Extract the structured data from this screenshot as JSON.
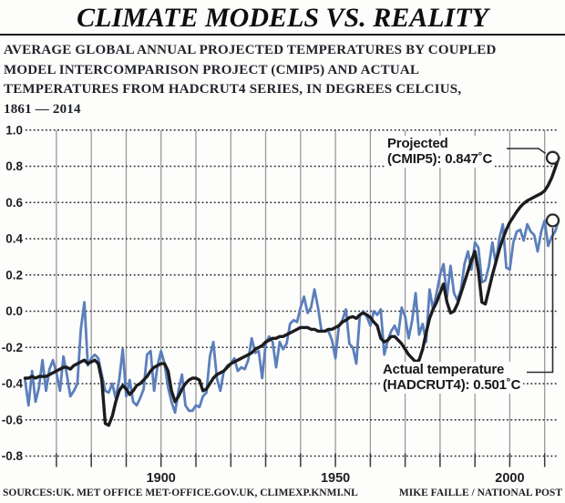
{
  "header": {
    "title": "CLIMATE MODELS VS. REALITY",
    "subtitle_lines": [
      "AVERAGE GLOBAL ANNUAL PROJECTED TEMPERATURES BY COUPLED",
      "MODEL INTERCOMPARISON PROJECT (CMIP5) AND ACTUAL",
      "TEMPERATURES FROM HADCRUT4 SERIES, IN DEGREES CELCIUS,",
      "1861 — 2014"
    ]
  },
  "annotations": {
    "projected": {
      "line1": "Projected",
      "line2": "(CMIP5): 0.847˚C",
      "value": 0.847
    },
    "actual": {
      "line1": "Actual temperature",
      "line2": "(HADCRUT4): 0.501˚C",
      "value": 0.501
    }
  },
  "footer": {
    "sources": "SOURCES:UK. MET OFFICE MET-OFFICE.GOV.UK, CLIMEXP.KNMI.NL",
    "credit": "MIKE FAILLE / NATIONAL POST"
  },
  "colors": {
    "projected_line": "#1c1c1e",
    "actual_line": "#5b7fbc",
    "grid_vertical": "#9a9a9a",
    "grid_dotted": "#2a2a2a",
    "tick": "#3a3a3a",
    "axis_text": "#1f1f22",
    "marker_stroke": "#2b2b2d"
  },
  "chart_data": {
    "type": "line",
    "title": "",
    "xlabel": "",
    "ylabel": "",
    "x_start": 1861,
    "x_end": 2014,
    "x_step": 1,
    "ylim": [
      -0.8,
      1.0
    ],
    "grid": "vertical solid decades, horizontal dotted 0.2 steps",
    "legend_position": "annotated endpoints",
    "ytick_values": [
      1.0,
      0.8,
      0.6,
      0.4,
      0.2,
      0.0,
      -0.2,
      -0.4,
      -0.6,
      -0.8
    ],
    "ytick_labels": [
      "1.0",
      "0.8",
      "0.6",
      "0.4",
      "0.2",
      "0.0",
      "-0.2",
      "-0.4",
      "-0.6",
      "-0.8"
    ],
    "xtick_values": [
      1900,
      1950,
      2000
    ],
    "xtick_labels": [
      "1900",
      "1950",
      "2000"
    ],
    "grid_years": [
      1870,
      1880,
      1890,
      1900,
      1910,
      1920,
      1930,
      1940,
      1950,
      1960,
      1970,
      1980,
      1990,
      2000,
      2010
    ],
    "series": [
      {
        "name": "Actual temperature (HADCRUT4)",
        "color": "#5b7fbc",
        "end_value": 0.501,
        "values": [
          -0.38,
          -0.52,
          -0.33,
          -0.5,
          -0.42,
          -0.27,
          -0.44,
          -0.32,
          -0.27,
          -0.34,
          -0.44,
          -0.25,
          -0.35,
          -0.47,
          -0.44,
          -0.4,
          -0.1,
          0.05,
          -0.3,
          -0.26,
          -0.24,
          -0.26,
          -0.35,
          -0.44,
          -0.45,
          -0.4,
          -0.48,
          -0.38,
          -0.21,
          -0.47,
          -0.38,
          -0.5,
          -0.52,
          -0.48,
          -0.43,
          -0.24,
          -0.22,
          -0.44,
          -0.3,
          -0.22,
          -0.29,
          -0.42,
          -0.5,
          -0.56,
          -0.44,
          -0.35,
          -0.52,
          -0.55,
          -0.55,
          -0.52,
          -0.53,
          -0.47,
          -0.45,
          -0.25,
          -0.17,
          -0.37,
          -0.44,
          -0.33,
          -0.3,
          -0.29,
          -0.26,
          -0.33,
          -0.31,
          -0.32,
          -0.27,
          -0.15,
          -0.23,
          -0.22,
          -0.37,
          -0.18,
          -0.14,
          -0.17,
          -0.31,
          -0.17,
          -0.21,
          -0.18,
          -0.07,
          -0.05,
          -0.06,
          0.02,
          0.08,
          -0.01,
          0.02,
          0.12,
          0.02,
          -0.11,
          -0.11,
          -0.11,
          -0.16,
          -0.26,
          -0.08,
          -0.05,
          0.01,
          -0.18,
          -0.2,
          -0.29,
          -0.02,
          0.0,
          -0.03,
          -0.08,
          0.0,
          -0.02,
          0.01,
          -0.24,
          -0.16,
          -0.11,
          -0.08,
          -0.13,
          0.02,
          -0.03,
          -0.15,
          -0.05,
          0.1,
          -0.13,
          -0.07,
          -0.17,
          0.12,
          0.01,
          0.1,
          0.2,
          0.26,
          0.08,
          0.25,
          0.1,
          0.06,
          0.12,
          0.26,
          0.33,
          0.23,
          0.38,
          0.35,
          0.16,
          0.17,
          0.25,
          0.38,
          0.26,
          0.4,
          0.48,
          0.24,
          0.23,
          0.38,
          0.44,
          0.45,
          0.39,
          0.48,
          0.44,
          0.42,
          0.33,
          0.44,
          0.5,
          0.36,
          0.41,
          0.44,
          0.501
        ]
      },
      {
        "name": "Projected (CMIP5)",
        "color": "#1c1c1e",
        "end_value": 0.847,
        "values": [
          -0.37,
          -0.37,
          -0.36,
          -0.37,
          -0.36,
          -0.36,
          -0.36,
          -0.35,
          -0.34,
          -0.33,
          -0.32,
          -0.31,
          -0.31,
          -0.32,
          -0.3,
          -0.29,
          -0.28,
          -0.27,
          -0.29,
          -0.28,
          -0.27,
          -0.29,
          -0.38,
          -0.62,
          -0.63,
          -0.58,
          -0.5,
          -0.44,
          -0.41,
          -0.43,
          -0.46,
          -0.44,
          -0.41,
          -0.4,
          -0.38,
          -0.36,
          -0.33,
          -0.31,
          -0.3,
          -0.29,
          -0.29,
          -0.33,
          -0.44,
          -0.5,
          -0.47,
          -0.43,
          -0.4,
          -0.38,
          -0.37,
          -0.37,
          -0.38,
          -0.44,
          -0.43,
          -0.4,
          -0.37,
          -0.35,
          -0.34,
          -0.33,
          -0.31,
          -0.29,
          -0.28,
          -0.27,
          -0.26,
          -0.25,
          -0.24,
          -0.23,
          -0.21,
          -0.2,
          -0.19,
          -0.17,
          -0.16,
          -0.15,
          -0.15,
          -0.14,
          -0.14,
          -0.13,
          -0.12,
          -0.11,
          -0.1,
          -0.09,
          -0.09,
          -0.09,
          -0.1,
          -0.1,
          -0.11,
          -0.11,
          -0.11,
          -0.1,
          -0.1,
          -0.09,
          -0.08,
          -0.06,
          -0.05,
          -0.035,
          -0.03,
          -0.04,
          -0.02,
          -0.01,
          -0.02,
          -0.035,
          -0.06,
          -0.08,
          -0.15,
          -0.17,
          -0.16,
          -0.14,
          -0.14,
          -0.16,
          -0.18,
          -0.21,
          -0.24,
          -0.26,
          -0.28,
          -0.27,
          -0.21,
          -0.12,
          -0.04,
          0.01,
          0.05,
          0.1,
          0.15,
          0.05,
          -0.01,
          0.0,
          0.04,
          0.1,
          0.16,
          0.22,
          0.28,
          0.33,
          0.22,
          0.05,
          0.04,
          0.12,
          0.2,
          0.27,
          0.34,
          0.4,
          0.45,
          0.49,
          0.52,
          0.55,
          0.575,
          0.595,
          0.61,
          0.62,
          0.63,
          0.64,
          0.65,
          0.665,
          0.695,
          0.735,
          0.79,
          0.847
        ]
      }
    ]
  }
}
